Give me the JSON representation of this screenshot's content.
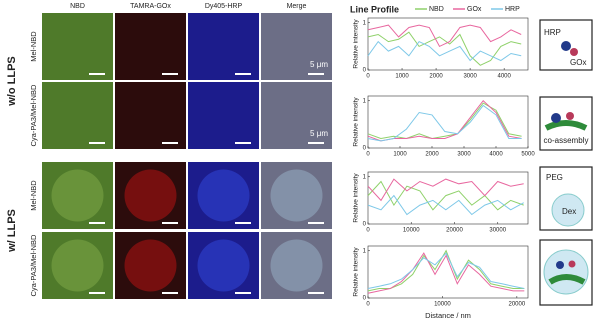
{
  "figure": {
    "columns": [
      "NBD",
      "TAMRA-GOx",
      "Dy405-HRP",
      "Merge"
    ],
    "groups": [
      {
        "label": "w/o LLPS",
        "rows": [
          "Mel-NBD",
          "Cya-PA3/Mel-NBD"
        ]
      },
      {
        "label": "w/ LLPS",
        "rows": [
          "Mel-NBD",
          "Cya-PA3/Mel-NBD"
        ]
      }
    ],
    "scale_label": "5 μm",
    "line_profile_title": "Line Profile",
    "x_label": "Distance / nm",
    "schematics": {
      "enzymes": [
        "HRP",
        "GOx"
      ],
      "assembly": "co-assembly",
      "phases": [
        "PEG",
        "Dex"
      ]
    }
  },
  "chart_data": [
    {
      "type": "line",
      "y_label": "Relative intensity",
      "x": [
        0,
        300,
        600,
        900,
        1200,
        1500,
        1800,
        2100,
        2400,
        2700,
        3000,
        3300,
        3600,
        3900,
        4200,
        4500
      ],
      "xlim": [
        0,
        4700
      ],
      "xticks": [
        0,
        1000,
        2000,
        3000,
        4000
      ],
      "ylim": [
        0,
        1.1
      ],
      "yticks": [
        0,
        1
      ],
      "series": [
        {
          "name": "NBD",
          "color": "#8fd16a",
          "values": [
            0.7,
            0.75,
            0.6,
            0.65,
            0.8,
            0.5,
            0.6,
            0.7,
            0.55,
            0.75,
            0.3,
            0.1,
            0.2,
            0.5,
            0.6,
            0.55
          ]
        },
        {
          "name": "GOx",
          "color": "#e8679f",
          "values": [
            0.85,
            0.9,
            0.95,
            0.7,
            0.9,
            0.95,
            0.9,
            0.5,
            0.6,
            0.9,
            0.95,
            0.9,
            0.6,
            0.7,
            0.85,
            0.75
          ]
        },
        {
          "name": "HRP",
          "color": "#7ec8e8",
          "values": [
            0.3,
            0.6,
            0.4,
            0.5,
            0.3,
            0.6,
            0.5,
            0.3,
            0.4,
            0.5,
            0.2,
            0.4,
            0.3,
            0.2,
            0.35,
            0.3
          ]
        }
      ]
    },
    {
      "type": "line",
      "y_label": "Relative intensity",
      "x": [
        0,
        400,
        800,
        1200,
        1600,
        2000,
        2400,
        2800,
        3200,
        3600,
        4000,
        4400,
        4800
      ],
      "xlim": [
        0,
        5000
      ],
      "xticks": [
        0,
        1000,
        2000,
        3000,
        4000,
        5000
      ],
      "ylim": [
        0,
        1.1
      ],
      "yticks": [
        0,
        1
      ],
      "series": [
        {
          "color": "#8fd16a",
          "values": [
            0.3,
            0.2,
            0.25,
            0.2,
            0.3,
            0.2,
            0.25,
            0.3,
            0.6,
            0.95,
            0.8,
            0.3,
            0.25
          ]
        },
        {
          "color": "#e8679f",
          "values": [
            0.25,
            0.15,
            0.2,
            0.2,
            0.25,
            0.2,
            0.2,
            0.3,
            0.65,
            1.0,
            0.75,
            0.25,
            0.2
          ]
        },
        {
          "color": "#7ec8e8",
          "values": [
            0.2,
            0.15,
            0.2,
            0.4,
            0.75,
            0.7,
            0.35,
            0.3,
            0.55,
            0.9,
            0.7,
            0.2,
            0.2
          ]
        }
      ]
    },
    {
      "type": "line",
      "y_label": "Relative intensity",
      "x": [
        0,
        3000,
        6000,
        9000,
        12000,
        15000,
        18000,
        21000,
        24000,
        27000,
        30000,
        33000,
        36000
      ],
      "xlim": [
        0,
        37000
      ],
      "xticks": [
        0,
        10000,
        20000,
        30000
      ],
      "ylim": [
        0,
        1.1
      ],
      "yticks": [
        0,
        1
      ],
      "series": [
        {
          "color": "#8fd16a",
          "values": [
            0.6,
            0.9,
            0.4,
            0.8,
            0.7,
            0.3,
            0.6,
            0.7,
            0.4,
            0.6,
            0.3,
            0.5,
            0.4
          ]
        },
        {
          "color": "#e8679f",
          "values": [
            0.8,
            0.5,
            0.95,
            0.7,
            0.9,
            0.8,
            0.95,
            0.85,
            0.9,
            0.6,
            0.9,
            0.8,
            0.85
          ]
        },
        {
          "color": "#7ec8e8",
          "values": [
            0.4,
            0.3,
            0.6,
            0.2,
            0.4,
            0.5,
            0.3,
            0.5,
            0.2,
            0.4,
            0.5,
            0.3,
            0.45
          ]
        }
      ]
    },
    {
      "type": "line",
      "y_label": "Relative intensity",
      "x": [
        0,
        1500,
        3000,
        4500,
        6000,
        7500,
        9000,
        10500,
        12000,
        13500,
        15000,
        16500,
        18000,
        19500,
        21000
      ],
      "xlim": [
        0,
        21500
      ],
      "xticks": [
        0,
        10000,
        20000
      ],
      "ylim": [
        0,
        1.1
      ],
      "yticks": [
        0,
        1
      ],
      "series": [
        {
          "color": "#8fd16a",
          "values": [
            0.15,
            0.2,
            0.2,
            0.3,
            0.5,
            0.9,
            0.6,
            1.0,
            0.4,
            0.8,
            0.6,
            0.3,
            0.25,
            0.2,
            0.2
          ]
        },
        {
          "color": "#e8679f",
          "values": [
            0.1,
            0.15,
            0.2,
            0.35,
            0.6,
            0.95,
            0.5,
            0.9,
            0.3,
            0.7,
            0.5,
            0.25,
            0.2,
            0.15,
            0.15
          ]
        },
        {
          "color": "#7ec8e8",
          "values": [
            0.2,
            0.25,
            0.3,
            0.4,
            0.6,
            0.85,
            0.7,
            0.95,
            0.45,
            0.75,
            0.65,
            0.35,
            0.3,
            0.25,
            0.2
          ]
        }
      ]
    }
  ]
}
